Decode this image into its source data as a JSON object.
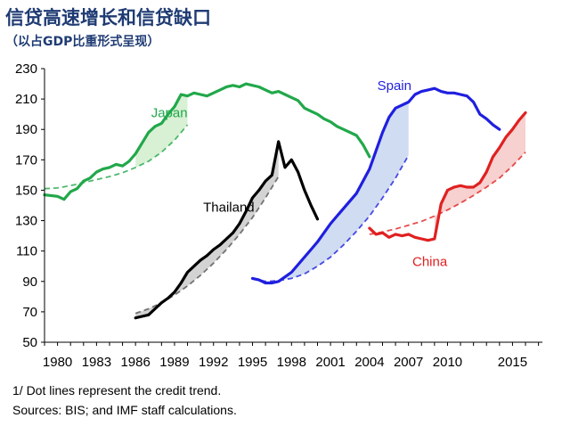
{
  "header": {
    "title": "信贷高速增长和信贷缺口",
    "subtitle": "（以占GDP比重形式呈现）"
  },
  "notes": {
    "line1": "1/ Dot lines represent the credit trend.",
    "line2": "Sources: BIS; and IMF staff calculations."
  },
  "chart_data": {
    "type": "line",
    "title": "信贷高速增长和信贷缺口",
    "subtitle": "（以占GDP比重形式呈现）",
    "ylim": [
      50,
      230
    ],
    "xlim": [
      1979,
      2017.3
    ],
    "yticks": [
      50,
      70,
      90,
      110,
      130,
      150,
      170,
      190,
      210,
      230
    ],
    "xticks": [
      1980,
      1983,
      1986,
      1989,
      1992,
      1995,
      1998,
      2001,
      2004,
      2007,
      2010,
      2015
    ],
    "grid": false,
    "legend": "none",
    "series": [
      {
        "name": "Japan",
        "color": "#21a84a",
        "label_at": [
          1987.2,
          198
        ],
        "x": [
          1979,
          1980,
          1980.5,
          1981,
          1981.5,
          1982,
          1982.5,
          1983,
          1983.5,
          1984,
          1984.5,
          1985,
          1985.5,
          1986,
          1986.5,
          1987,
          1987.5,
          1988,
          1988.5,
          1989,
          1989.5,
          1990,
          1990.5,
          1991,
          1991.5,
          1992,
          1992.5,
          1993,
          1993.5,
          1994,
          1994.5,
          1995,
          1995.5,
          1996,
          1996.5,
          1997,
          1997.5,
          1998,
          1998.5,
          1999,
          1999.5,
          2000,
          2000.5,
          2001,
          2001.5,
          2002,
          2002.5,
          2003,
          2003.5,
          2004
        ],
        "values": [
          147,
          146,
          144,
          149,
          151,
          156,
          158,
          162,
          164,
          165,
          167,
          166,
          169,
          174,
          181,
          188,
          192,
          194,
          200,
          205,
          213,
          212,
          214,
          213,
          212,
          214,
          216,
          218,
          219,
          218,
          220,
          219,
          218,
          216,
          214,
          215,
          213,
          211,
          209,
          204,
          202,
          200,
          197,
          195,
          192,
          190,
          188,
          186,
          180,
          172
        ],
        "trend": {
          "x": [
            1979,
            1980,
            1981,
            1982,
            1983,
            1984,
            1985,
            1986,
            1987,
            1988,
            1989,
            1990
          ],
          "values": [
            151,
            151.5,
            153,
            155,
            157,
            159,
            161.5,
            165,
            169,
            175,
            183,
            193
          ]
        }
      },
      {
        "name": "Thailand",
        "color": "#000000",
        "label_at": [
          1991.2,
          136
        ],
        "x": [
          1986,
          1986.5,
          1987,
          1987.5,
          1988,
          1988.5,
          1989,
          1989.5,
          1990,
          1990.5,
          1991,
          1991.5,
          1992,
          1992.5,
          1993,
          1993.5,
          1994,
          1994.5,
          1995,
          1995.5,
          1996,
          1996.5,
          1997,
          1997.5,
          1998,
          1998.5,
          1999,
          1999.5,
          2000
        ],
        "values": [
          66,
          67,
          68,
          72,
          76,
          79,
          83,
          89,
          96,
          100,
          104,
          107,
          111,
          114,
          118,
          122,
          128,
          136,
          145,
          150,
          156,
          160,
          182,
          165,
          170,
          162,
          150,
          140,
          131
        ],
        "trend": {
          "x": [
            1986,
            1987,
            1988,
            1989,
            1990,
            1991,
            1992,
            1993,
            1994,
            1995,
            1996,
            1997
          ],
          "values": [
            69,
            72,
            76,
            81,
            87,
            94,
            102,
            111,
            121,
            132,
            145,
            159
          ]
        }
      },
      {
        "name": "Spain",
        "color": "#1f1fe0",
        "label_at": [
          2004.6,
          216
        ],
        "x": [
          1995,
          1995.5,
          1996,
          1996.5,
          1997,
          1997.5,
          1998,
          1998.5,
          1999,
          1999.5,
          2000,
          2000.5,
          2001,
          2001.5,
          2002,
          2002.5,
          2003,
          2003.5,
          2004,
          2004.5,
          2005,
          2005.5,
          2006,
          2006.5,
          2007,
          2007.5,
          2008,
          2008.5,
          2009,
          2009.5,
          2010,
          2010.5,
          2011,
          2011.5,
          2012,
          2012.5,
          2013,
          2013.5,
          2014
        ],
        "values": [
          92,
          91,
          89,
          89,
          90,
          93,
          96,
          101,
          106,
          111,
          116,
          122,
          128,
          133,
          138,
          143,
          148,
          156,
          164,
          176,
          188,
          198,
          204,
          206,
          208,
          213,
          215,
          216,
          217,
          215,
          214,
          214,
          213,
          212,
          208,
          200,
          197,
          193,
          190
        ],
        "trend": {
          "x": [
            1995,
            1996,
            1997,
            1998,
            1999,
            2000,
            2001,
            2002,
            2003,
            2004,
            2005,
            2006,
            2007
          ],
          "values": [
            92,
            90,
            90.5,
            92,
            95,
            100,
            106,
            114,
            123,
            133,
            145,
            158,
            173
          ]
        }
      },
      {
        "name": "China",
        "color": "#e02020",
        "label_at": [
          2007.3,
          100
        ],
        "x": [
          2004,
          2004.5,
          2005,
          2005.5,
          2006,
          2006.5,
          2007,
          2007.5,
          2008,
          2008.5,
          2009,
          2009.5,
          2010,
          2010.5,
          2011,
          2011.5,
          2012,
          2012.5,
          2013,
          2013.5,
          2014,
          2014.5,
          2015,
          2015.5,
          2016
        ],
        "values": [
          125,
          121,
          122,
          119,
          121,
          120,
          121,
          119,
          118,
          117,
          118,
          141,
          150,
          152,
          153,
          152,
          152,
          155,
          162,
          172,
          178,
          185,
          190,
          196,
          201
        ],
        "trend": {
          "x": [
            2004,
            2005,
            2006,
            2007,
            2008,
            2009,
            2010,
            2011,
            2012,
            2013,
            2014,
            2015,
            2016
          ],
          "values": [
            121,
            122.5,
            124.5,
            127,
            129.5,
            133,
            137,
            141.5,
            146.5,
            152,
            158,
            166,
            175
          ]
        }
      }
    ],
    "gap_fills": [
      {
        "series": 0,
        "x0": 1986,
        "x1": 1990,
        "fill": "#d8f0d4"
      },
      {
        "series": 1,
        "x0": 1986,
        "x1": 1997,
        "fill": "#d3d3d3"
      },
      {
        "series": 2,
        "x0": 1995,
        "x1": 2007,
        "fill": "#cfdcf1"
      },
      {
        "series": 3,
        "x0": 2009,
        "x1": 2016,
        "fill": "#f7d0d0"
      }
    ]
  }
}
